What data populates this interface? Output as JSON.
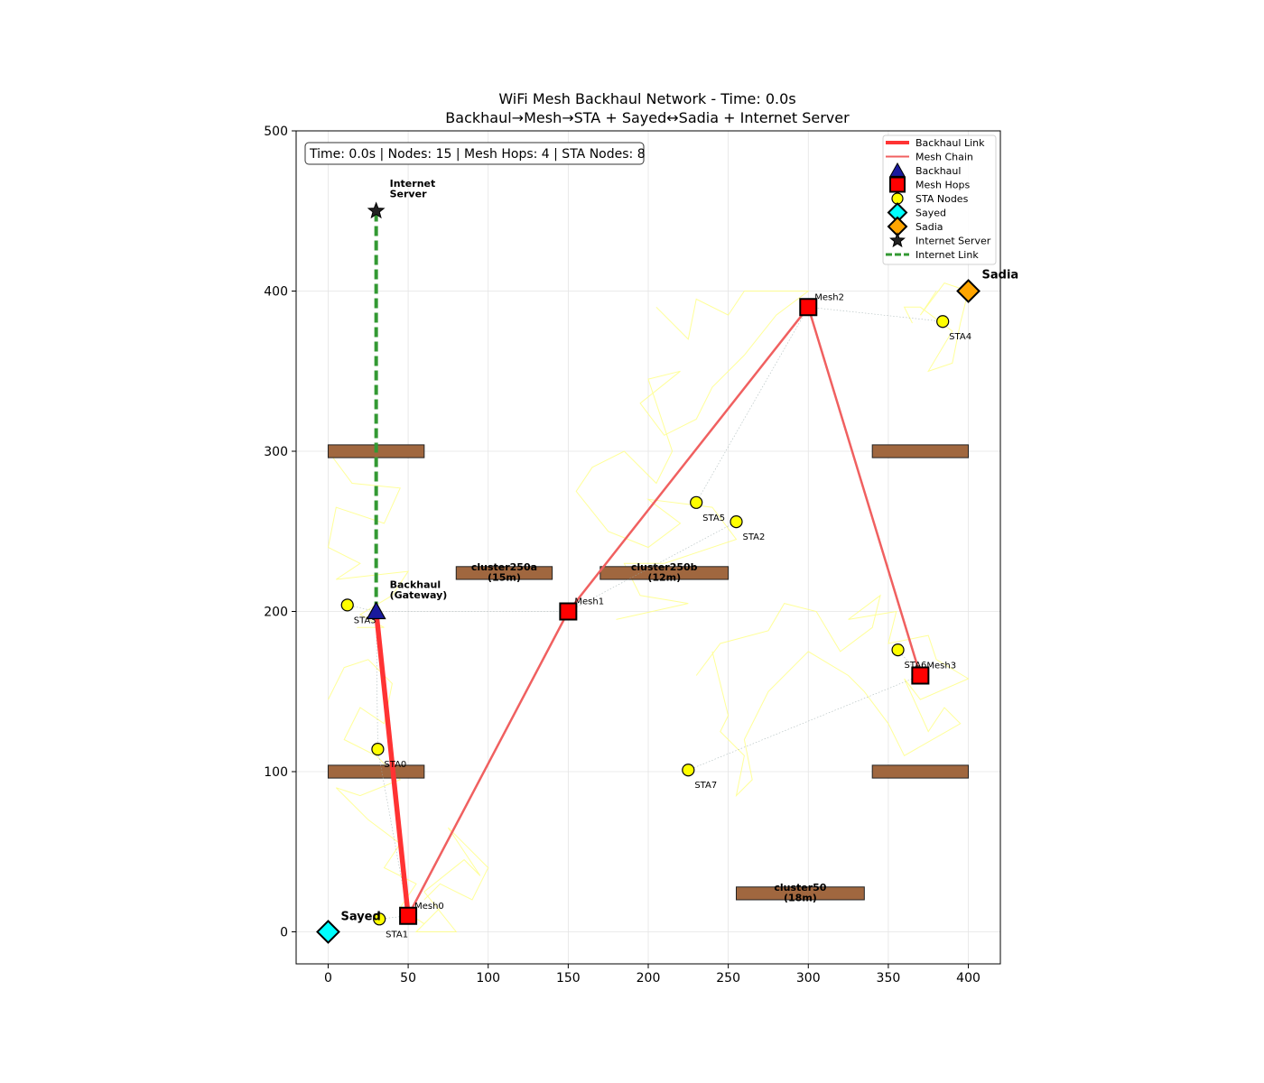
{
  "chart_data": {
    "type": "scatter",
    "title": "WiFi Mesh Backhaul Network - Time: 0.0s",
    "subtitle": "Backhaul→Mesh→STA + Sayed↔Sadia + Internet Server",
    "xlabel": "",
    "ylabel": "",
    "xlim": [
      -20,
      420
    ],
    "ylim": [
      -20,
      500
    ],
    "x_ticks": [
      0,
      50,
      100,
      150,
      200,
      250,
      300,
      350,
      400
    ],
    "y_ticks": [
      0,
      100,
      200,
      300,
      400,
      500
    ],
    "grid": true,
    "legend_position": "top-right",
    "info_box": "Time: 0.0s | Nodes: 15 | Mesh Hops: 4 | STA Nodes: 8",
    "colors": {
      "backhaul_link": "#ff3333",
      "mesh_chain": "#f06060",
      "internet_link": "#339933",
      "backhaul_node": "#1a1a9e",
      "mesh_node": "#ff0000",
      "sta_node": "#ffff00",
      "sayed": "#00ffff",
      "sadia": "#ffa500",
      "obstacle": "#a0673f",
      "trail": "#ffff80"
    },
    "legend": [
      {
        "label": "Backhaul Link",
        "kind": "thick-line"
      },
      {
        "label": "Mesh Chain",
        "kind": "line"
      },
      {
        "label": "Backhaul",
        "kind": "triangle"
      },
      {
        "label": "Mesh Hops",
        "kind": "square"
      },
      {
        "label": "STA Nodes",
        "kind": "circle"
      },
      {
        "label": "Sayed",
        "kind": "diamond-cyan"
      },
      {
        "label": "Sadia",
        "kind": "diamond-orange"
      },
      {
        "label": "Internet Server",
        "kind": "star"
      },
      {
        "label": "Internet Link",
        "kind": "dashed-line"
      }
    ],
    "backhaul": {
      "label": "Backhaul\n(Gateway)",
      "x": 30,
      "y": 200
    },
    "internet_server": {
      "label": "Internet\nServer",
      "x": 30,
      "y": 450
    },
    "sayed": {
      "label": "Sayed",
      "x": 0,
      "y": 0
    },
    "sadia": {
      "label": "Sadia",
      "x": 400,
      "y": 400
    },
    "mesh_nodes": [
      {
        "name": "Mesh0",
        "x": 50,
        "y": 10
      },
      {
        "name": "Mesh1",
        "x": 150,
        "y": 200
      },
      {
        "name": "Mesh2",
        "x": 300,
        "y": 390
      },
      {
        "name": "Mesh3",
        "x": 370,
        "y": 160
      }
    ],
    "sta_nodes": [
      {
        "name": "STA0",
        "x": 31,
        "y": 114,
        "parent": "Mesh0"
      },
      {
        "name": "STA1",
        "x": 32,
        "y": 8,
        "parent": "Mesh0"
      },
      {
        "name": "STA2",
        "x": 255,
        "y": 256,
        "parent": "Mesh1"
      },
      {
        "name": "STA3",
        "x": 12,
        "y": 204,
        "parent": "Mesh1"
      },
      {
        "name": "STA4",
        "x": 384,
        "y": 381,
        "parent": "Mesh2"
      },
      {
        "name": "STA5",
        "x": 230,
        "y": 268,
        "parent": "Mesh2"
      },
      {
        "name": "STA6",
        "x": 356,
        "y": 176,
        "parent": "Mesh3"
      },
      {
        "name": "STA7",
        "x": 225,
        "y": 101,
        "parent": "Mesh3"
      }
    ],
    "obstacles": [
      {
        "x0": 0,
        "x1": 60,
        "y0": 296,
        "y1": 304,
        "label": ""
      },
      {
        "x0": 340,
        "x1": 400,
        "y0": 296,
        "y1": 304,
        "label": ""
      },
      {
        "x0": 0,
        "x1": 60,
        "y0": 96,
        "y1": 104,
        "label": ""
      },
      {
        "x0": 340,
        "x1": 400,
        "y0": 96,
        "y1": 104,
        "label": ""
      },
      {
        "x0": 80,
        "x1": 140,
        "y0": 220,
        "y1": 228,
        "label": "cluster250a\n(15m)"
      },
      {
        "x0": 170,
        "x1": 250,
        "y0": 220,
        "y1": 228,
        "label": "cluster250b\n(12m)"
      },
      {
        "x0": 255,
        "x1": 335,
        "y0": 20,
        "y1": 28,
        "label": "cluster50\n(18m)"
      }
    ],
    "trails": [
      [
        [
          0,
          300
        ],
        [
          15,
          280
        ],
        [
          45,
          277
        ],
        [
          35,
          255
        ],
        [
          5,
          265
        ],
        [
          0,
          240
        ],
        [
          20,
          230
        ],
        [
          5,
          220
        ],
        [
          50,
          225
        ],
        [
          40,
          210
        ],
        [
          20,
          198
        ],
        [
          35,
          190
        ],
        [
          18,
          190
        ]
      ],
      [
        [
          0,
          145
        ],
        [
          10,
          165
        ],
        [
          25,
          170
        ],
        [
          40,
          155
        ],
        [
          35,
          130
        ],
        [
          20,
          140
        ],
        [
          10,
          120
        ],
        [
          30,
          110
        ],
        [
          45,
          95
        ],
        [
          20,
          85
        ],
        [
          5,
          90
        ],
        [
          25,
          70
        ],
        [
          45,
          55
        ],
        [
          35,
          40
        ],
        [
          55,
          30
        ],
        [
          45,
          15
        ],
        [
          60,
          5
        ],
        [
          70,
          15
        ],
        [
          55,
          0
        ],
        [
          80,
          0
        ],
        [
          60,
          25
        ],
        [
          85,
          45
        ],
        [
          95,
          35
        ],
        [
          75,
          65
        ],
        [
          100,
          40
        ],
        [
          90,
          20
        ],
        [
          70,
          30
        ],
        [
          60,
          20
        ]
      ],
      [
        [
          205,
          390
        ],
        [
          225,
          370
        ],
        [
          230,
          395
        ],
        [
          250,
          385
        ],
        [
          260,
          400
        ],
        [
          300,
          400
        ],
        [
          280,
          385
        ],
        [
          260,
          360
        ],
        [
          240,
          340
        ],
        [
          230,
          320
        ],
        [
          210,
          310
        ],
        [
          195,
          330
        ],
        [
          220,
          350
        ],
        [
          200,
          345
        ],
        [
          215,
          300
        ],
        [
          205,
          280
        ],
        [
          185,
          300
        ],
        [
          165,
          290
        ],
        [
          155,
          275
        ],
        [
          175,
          250
        ],
        [
          200,
          240
        ],
        [
          220,
          255
        ],
        [
          200,
          270
        ],
        [
          240,
          265
        ],
        [
          255,
          245
        ],
        [
          210,
          230
        ],
        [
          185,
          230
        ],
        [
          195,
          210
        ],
        [
          225,
          205
        ],
        [
          180,
          195
        ]
      ],
      [
        [
          380,
          400
        ],
        [
          370,
          385
        ],
        [
          385,
          405
        ],
        [
          400,
          400
        ],
        [
          395,
          380
        ],
        [
          390,
          355
        ],
        [
          375,
          350
        ],
        [
          390,
          375
        ],
        [
          370,
          390
        ],
        [
          360,
          390
        ],
        [
          365,
          380
        ]
      ],
      [
        [
          230,
          160
        ],
        [
          245,
          180
        ],
        [
          275,
          188
        ],
        [
          285,
          205
        ],
        [
          305,
          200
        ],
        [
          320,
          175
        ],
        [
          340,
          190
        ],
        [
          345,
          210
        ],
        [
          325,
          195
        ],
        [
          355,
          200
        ],
        [
          350,
          180
        ],
        [
          375,
          185
        ],
        [
          380,
          170
        ],
        [
          400,
          158
        ],
        [
          370,
          145
        ],
        [
          360,
          158
        ],
        [
          375,
          125
        ],
        [
          385,
          140
        ],
        [
          395,
          130
        ],
        [
          360,
          110
        ],
        [
          350,
          130
        ],
        [
          335,
          150
        ],
        [
          325,
          160
        ],
        [
          300,
          175
        ],
        [
          275,
          150
        ],
        [
          260,
          120
        ],
        [
          265,
          95
        ],
        [
          255,
          85
        ],
        [
          260,
          110
        ],
        [
          245,
          125
        ],
        [
          250,
          135
        ],
        [
          240,
          175
        ]
      ]
    ],
    "faint_links": [
      [
        30,
        200,
        150,
        200
      ],
      [
        12,
        204,
        30,
        200
      ],
      [
        30,
        200,
        31,
        114
      ],
      [
        31,
        114,
        50,
        10
      ],
      [
        32,
        8,
        50,
        10
      ],
      [
        150,
        200,
        255,
        256
      ],
      [
        230,
        268,
        300,
        390
      ],
      [
        300,
        390,
        384,
        381
      ],
      [
        225,
        101,
        370,
        160
      ],
      [
        356,
        176,
        370,
        160
      ]
    ]
  }
}
